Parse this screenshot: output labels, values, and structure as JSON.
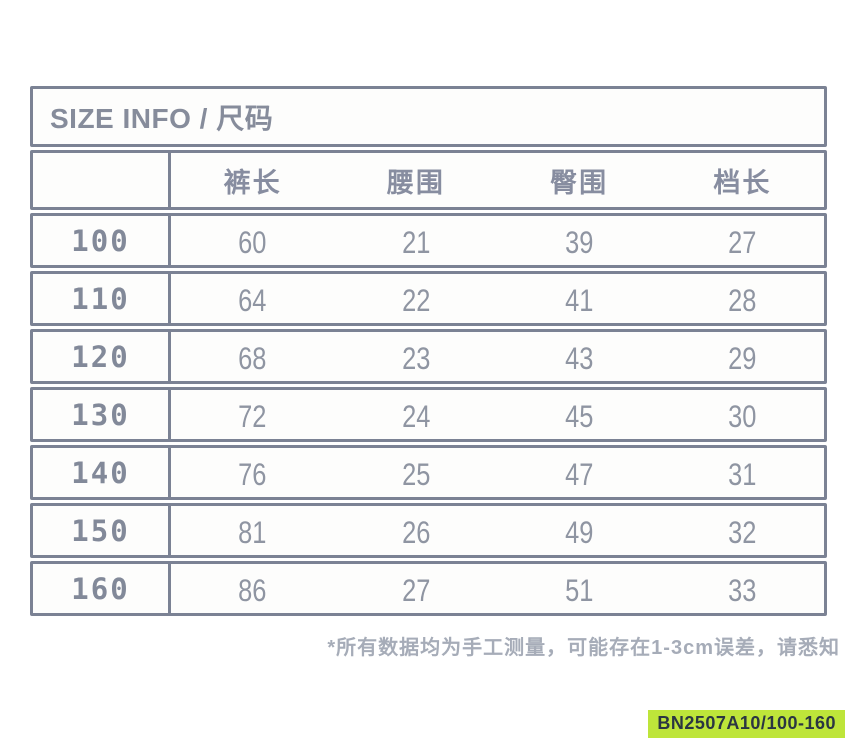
{
  "title": "SIZE INFO / 尺码",
  "table": {
    "columns": [
      "裤长",
      "腰围",
      "臀围",
      "档长"
    ],
    "rows": [
      {
        "size": "100",
        "values": [
          "60",
          "21",
          "39",
          "27"
        ]
      },
      {
        "size": "110",
        "values": [
          "64",
          "22",
          "41",
          "28"
        ]
      },
      {
        "size": "120",
        "values": [
          "68",
          "23",
          "43",
          "29"
        ]
      },
      {
        "size": "130",
        "values": [
          "72",
          "24",
          "45",
          "30"
        ]
      },
      {
        "size": "140",
        "values": [
          "76",
          "25",
          "47",
          "31"
        ]
      },
      {
        "size": "150",
        "values": [
          "81",
          "26",
          "49",
          "32"
        ]
      },
      {
        "size": "160",
        "values": [
          "86",
          "27",
          "51",
          "33"
        ]
      }
    ]
  },
  "footnote": "*所有数据均为手工测量，可能存在1-3cm误差，请悉知",
  "badge": {
    "text": "BN2507A10/100-160"
  },
  "colors": {
    "border": "#7b8294",
    "title_text": "#868c9b",
    "header_text": "#878da0",
    "number_text": "#8f95a2",
    "footnote_text": "#a6acb8",
    "badge_background": "#bee53a",
    "badge_text": "#2b3642",
    "page_background": "#ffffff"
  }
}
